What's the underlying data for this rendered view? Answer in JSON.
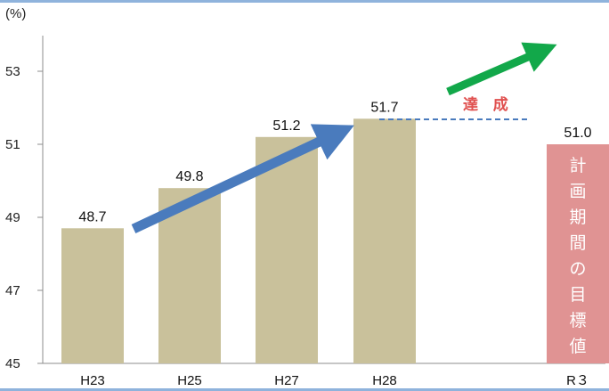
{
  "chart_data": {
    "type": "bar",
    "ylabel": "(%)",
    "ylim": [
      45,
      54
    ],
    "yticks": [
      45,
      47,
      49,
      51,
      53
    ],
    "categories": [
      "H23",
      "H25",
      "H27",
      "H28",
      "R３"
    ],
    "values": [
      48.7,
      49.8,
      51.2,
      51.7,
      51.0
    ],
    "value_labels": [
      "48.7",
      "49.8",
      "51.2",
      "51.7",
      "51.0"
    ],
    "annotations": {
      "achieved": "達 成",
      "target_text": "計画期間の目標値"
    },
    "colors": {
      "bar": "#c9c19b",
      "target_bar": "#e09393",
      "trend_arrow": "#4a7bbd",
      "achieve_arrow": "#12a84a",
      "dashed_line": "#4a7bbd",
      "achieve_text": "#e0504f",
      "frame": "#8fb3dc"
    }
  }
}
